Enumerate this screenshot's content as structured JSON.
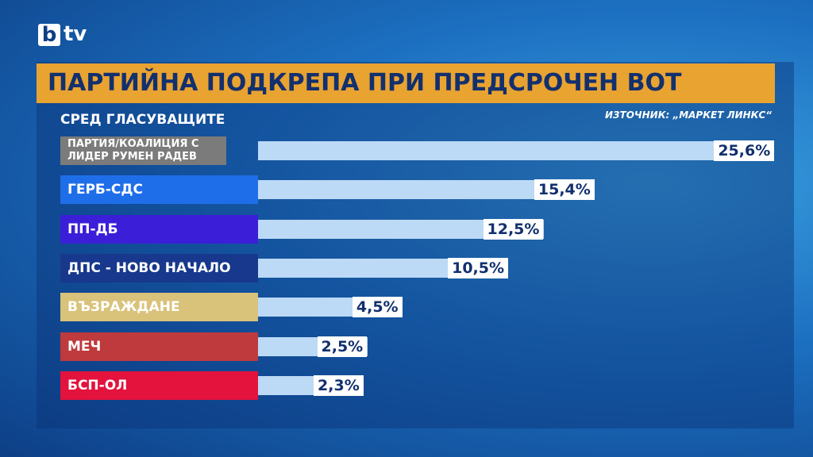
{
  "logo": {
    "mark": "b",
    "text": "tv"
  },
  "chart_data": {
    "type": "hbar",
    "title": "ПАРТИЙНА ПОДКРЕПА ПРИ ПРЕДСРОЧЕН ВОТ",
    "subtitle": "СРЕД ГЛАСУВАЩИТЕ",
    "source": "ИЗТОЧНИК: „МАРКЕТ ЛИНКС“",
    "categories": [
      "ПАРТИЯ/КОАЛИЦИЯ С ЛИДЕР РУМЕН РАДЕВ",
      "ГЕРБ-СДС",
      "ПП-ДБ",
      "ДПС - НОВО НАЧАЛО",
      "ВЪЗРАЖДАНЕ",
      "МЕЧ",
      "БСП-ОЛ"
    ],
    "category_colors": [
      "#7b7b7b",
      "#1f6ee9",
      "#3b1ed8",
      "#17388c",
      "#d9c27a",
      "#bf3a3c",
      "#e3133d"
    ],
    "values": [
      25.6,
      15.4,
      12.5,
      10.5,
      4.5,
      2.5,
      2.3
    ],
    "value_labels": [
      "25,6%",
      "15,4%",
      "12,5%",
      "10,5%",
      "4,5%",
      "2,5%",
      "2,3%"
    ],
    "color": "#bcd9f6"
  }
}
